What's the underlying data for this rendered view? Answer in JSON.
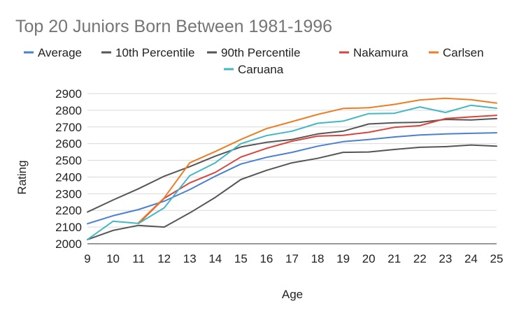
{
  "chart_data": {
    "type": "line",
    "title": "Top 20 Juniors Born Between 1981-1996",
    "xlabel": "Age",
    "ylabel": "Rating",
    "x": [
      9,
      10,
      11,
      12,
      13,
      14,
      15,
      16,
      17,
      18,
      19,
      20,
      21,
      22,
      23,
      24,
      25
    ],
    "xlim": [
      9,
      25
    ],
    "ylim": [
      2000,
      2900
    ],
    "yticks": [
      2000,
      2100,
      2200,
      2300,
      2400,
      2500,
      2600,
      2700,
      2800,
      2900
    ],
    "grid": true,
    "legend": "top",
    "series": [
      {
        "name": "Average",
        "color": "#4a7fd4",
        "values": [
          2120,
          2168,
          2205,
          2255,
          2325,
          2405,
          2478,
          2518,
          2548,
          2585,
          2612,
          2625,
          2640,
          2652,
          2658,
          2662,
          2665
        ]
      },
      {
        "name": "10th Percentile",
        "color": "#555555",
        "values": [
          2025,
          2080,
          2110,
          2100,
          2185,
          2278,
          2385,
          2440,
          2485,
          2512,
          2548,
          2550,
          2565,
          2578,
          2582,
          2592,
          2585
        ]
      },
      {
        "name": "90th Percentile",
        "color": "#555555",
        "values": [
          2190,
          2262,
          2330,
          2405,
          2462,
          2525,
          2580,
          2608,
          2625,
          2658,
          2675,
          2718,
          2725,
          2728,
          2745,
          2742,
          2750
        ]
      },
      {
        "name": "Nakamura",
        "color": "#d9453a",
        "values": [
          null,
          null,
          2122,
          2272,
          2365,
          2428,
          2520,
          2572,
          2615,
          2645,
          2650,
          2668,
          2698,
          2708,
          2750,
          2760,
          2770
        ]
      },
      {
        "name": "Carlsen",
        "color": "#ed7d22",
        "values": [
          null,
          null,
          2127,
          2275,
          2485,
          2553,
          2625,
          2690,
          2732,
          2775,
          2811,
          2815,
          2835,
          2862,
          2872,
          2863,
          2843
        ]
      },
      {
        "name": "Caruana",
        "color": "#43b7c4",
        "values": [
          2025,
          2135,
          2122,
          2215,
          2408,
          2485,
          2600,
          2648,
          2675,
          2722,
          2735,
          2780,
          2782,
          2820,
          2787,
          2830,
          2812
        ]
      }
    ]
  }
}
